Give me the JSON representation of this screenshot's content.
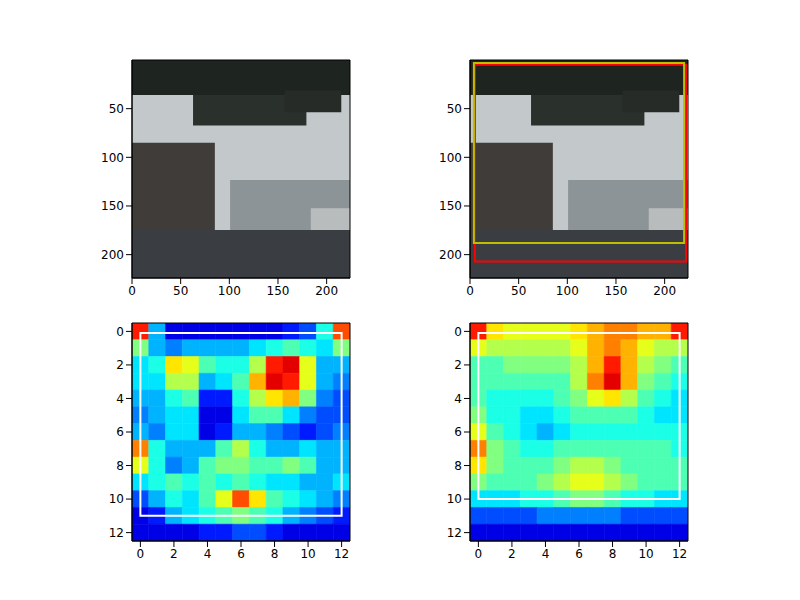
{
  "chart_data": [
    {
      "type": "image",
      "xlim": [
        0,
        224
      ],
      "ylim": [
        224,
        0
      ],
      "xticks": [
        0,
        50,
        100,
        150,
        200
      ],
      "yticks": [
        0,
        50,
        100,
        150,
        200
      ]
    },
    {
      "type": "image",
      "xlim": [
        0,
        224
      ],
      "ylim": [
        224,
        0
      ],
      "xticks": [
        0,
        50,
        100,
        150,
        200
      ],
      "yticks": [
        0,
        50,
        100,
        150,
        200
      ],
      "boxes": [
        {
          "x0": 5,
          "y0": 5,
          "x1": 222,
          "y1": 207,
          "color": "#ff0000"
        },
        {
          "x0": 4,
          "y0": 3,
          "x1": 220,
          "y1": 188,
          "color": "#bfbf00"
        }
      ]
    },
    {
      "type": "heatmap",
      "color": "jet",
      "xlim": [
        -0.5,
        12.5
      ],
      "ylim": [
        12.5,
        -0.5
      ],
      "xticks": [
        0,
        2,
        4,
        6,
        8,
        10,
        12
      ],
      "yticks": [
        0,
        2,
        4,
        6,
        8,
        10,
        12
      ],
      "cells": [
        [
          0.85,
          0.3,
          0.1,
          0.1,
          0.1,
          0.1,
          0.1,
          0.1,
          0.1,
          0.15,
          0.2,
          0.4,
          0.8
        ],
        [
          0.5,
          0.3,
          0.25,
          0.3,
          0.3,
          0.3,
          0.3,
          0.35,
          0.4,
          0.45,
          0.4,
          0.35,
          0.5
        ],
        [
          0.35,
          0.4,
          0.65,
          0.6,
          0.45,
          0.4,
          0.4,
          0.55,
          0.85,
          0.9,
          0.6,
          0.3,
          0.3
        ],
        [
          0.35,
          0.35,
          0.55,
          0.55,
          0.3,
          0.35,
          0.45,
          0.7,
          0.9,
          0.85,
          0.6,
          0.3,
          0.25
        ],
        [
          0.3,
          0.3,
          0.4,
          0.45,
          0.15,
          0.15,
          0.4,
          0.55,
          0.65,
          0.7,
          0.5,
          0.25,
          0.2
        ],
        [
          0.25,
          0.3,
          0.35,
          0.35,
          0.1,
          0.1,
          0.35,
          0.45,
          0.45,
          0.35,
          0.25,
          0.2,
          0.2
        ],
        [
          0.3,
          0.25,
          0.35,
          0.35,
          0.1,
          0.15,
          0.3,
          0.3,
          0.25,
          0.2,
          0.15,
          0.2,
          0.25
        ],
        [
          0.75,
          0.4,
          0.3,
          0.3,
          0.3,
          0.45,
          0.55,
          0.4,
          0.3,
          0.3,
          0.35,
          0.3,
          0.3
        ],
        [
          0.6,
          0.4,
          0.25,
          0.3,
          0.45,
          0.5,
          0.5,
          0.45,
          0.45,
          0.5,
          0.45,
          0.3,
          0.3
        ],
        [
          0.35,
          0.4,
          0.45,
          0.4,
          0.45,
          0.4,
          0.45,
          0.4,
          0.35,
          0.35,
          0.3,
          0.3,
          0.35
        ],
        [
          0.2,
          0.3,
          0.4,
          0.35,
          0.45,
          0.6,
          0.8,
          0.65,
          0.45,
          0.4,
          0.35,
          0.3,
          0.25
        ],
        [
          0.1,
          0.15,
          0.3,
          0.35,
          0.4,
          0.45,
          0.5,
          0.45,
          0.4,
          0.3,
          0.25,
          0.2,
          0.15
        ],
        [
          0.1,
          0.1,
          0.1,
          0.1,
          0.15,
          0.15,
          0.2,
          0.2,
          0.15,
          0.1,
          0.1,
          0.1,
          0.1
        ]
      ],
      "boxes": [
        {
          "x0": 0,
          "y0": 0.1,
          "x1": 12,
          "y1": 11,
          "color": "#ffffff"
        }
      ]
    },
    {
      "type": "heatmap",
      "color": "jet",
      "xlim": [
        -0.5,
        12.5
      ],
      "ylim": [
        12.5,
        -0.5
      ],
      "xticks": [
        0,
        2,
        4,
        6,
        8,
        10,
        12
      ],
      "yticks": [
        0,
        2,
        4,
        6,
        8,
        10,
        12
      ],
      "cells": [
        [
          0.85,
          0.65,
          0.6,
          0.6,
          0.6,
          0.6,
          0.65,
          0.7,
          0.75,
          0.75,
          0.7,
          0.7,
          0.85
        ],
        [
          0.6,
          0.55,
          0.55,
          0.55,
          0.55,
          0.55,
          0.6,
          0.7,
          0.75,
          0.7,
          0.6,
          0.55,
          0.55
        ],
        [
          0.45,
          0.45,
          0.5,
          0.5,
          0.5,
          0.5,
          0.55,
          0.7,
          0.85,
          0.7,
          0.55,
          0.5,
          0.45
        ],
        [
          0.45,
          0.45,
          0.45,
          0.45,
          0.45,
          0.45,
          0.55,
          0.75,
          0.9,
          0.7,
          0.5,
          0.45,
          0.4
        ],
        [
          0.45,
          0.4,
          0.4,
          0.4,
          0.4,
          0.45,
          0.5,
          0.6,
          0.65,
          0.55,
          0.45,
          0.4,
          0.35
        ],
        [
          0.5,
          0.4,
          0.4,
          0.35,
          0.35,
          0.4,
          0.45,
          0.45,
          0.45,
          0.45,
          0.4,
          0.35,
          0.35
        ],
        [
          0.6,
          0.45,
          0.4,
          0.35,
          0.3,
          0.35,
          0.4,
          0.4,
          0.4,
          0.4,
          0.4,
          0.4,
          0.4
        ],
        [
          0.75,
          0.5,
          0.45,
          0.4,
          0.4,
          0.45,
          0.45,
          0.45,
          0.45,
          0.45,
          0.45,
          0.45,
          0.4
        ],
        [
          0.65,
          0.5,
          0.45,
          0.45,
          0.45,
          0.5,
          0.55,
          0.55,
          0.5,
          0.45,
          0.45,
          0.45,
          0.45
        ],
        [
          0.5,
          0.45,
          0.45,
          0.45,
          0.5,
          0.55,
          0.6,
          0.6,
          0.55,
          0.5,
          0.45,
          0.45,
          0.45
        ],
        [
          0.35,
          0.35,
          0.35,
          0.4,
          0.4,
          0.45,
          0.5,
          0.5,
          0.45,
          0.4,
          0.4,
          0.35,
          0.35
        ],
        [
          0.2,
          0.2,
          0.2,
          0.2,
          0.25,
          0.25,
          0.25,
          0.25,
          0.25,
          0.2,
          0.2,
          0.2,
          0.2
        ],
        [
          0.1,
          0.1,
          0.1,
          0.1,
          0.1,
          0.1,
          0.1,
          0.1,
          0.1,
          0.1,
          0.1,
          0.1,
          0.1
        ]
      ],
      "boxes": [
        {
          "x0": 0,
          "y0": 0.1,
          "x1": 12,
          "y1": 10,
          "color": "#ffffff"
        }
      ]
    }
  ]
}
